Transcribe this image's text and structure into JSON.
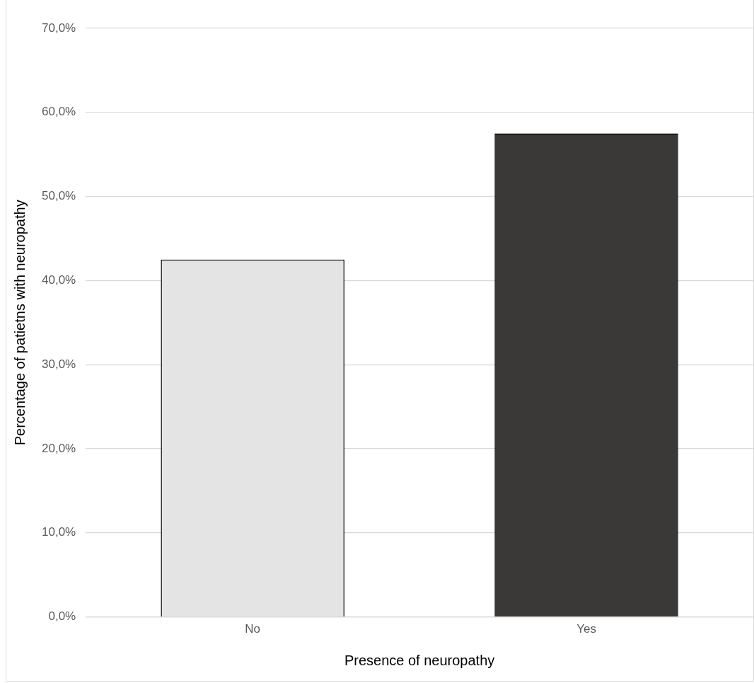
{
  "chart_data": {
    "type": "bar",
    "xlabel": "Presence of neuropathy",
    "ylabel": "Percentage of patietns with neuropathy",
    "categories": [
      "No",
      "Yes"
    ],
    "values": [
      42.5,
      57.5
    ],
    "colors": [
      "#e4e4e4",
      "#3a3938"
    ],
    "ylim": [
      0,
      70
    ],
    "yticks": [
      {
        "value": 0,
        "label": "0,0%"
      },
      {
        "value": 10,
        "label": "10,0%"
      },
      {
        "value": 20,
        "label": "20,0%"
      },
      {
        "value": 30,
        "label": "30,0%"
      },
      {
        "value": 40,
        "label": "40,0%"
      },
      {
        "value": 50,
        "label": "50,0%"
      },
      {
        "value": 60,
        "label": "60,0%"
      },
      {
        "value": 70,
        "label": "70,0%"
      }
    ],
    "grid": "y",
    "legend": false
  }
}
